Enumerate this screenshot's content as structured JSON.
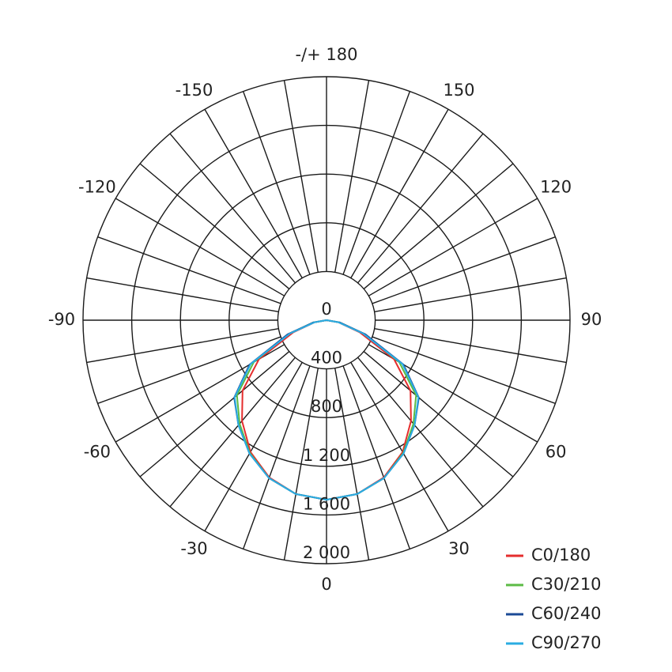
{
  "chart_data": {
    "type": "polar",
    "x": [
      -90,
      -80,
      -70,
      -60,
      -50,
      -40,
      -30,
      -20,
      -10,
      0,
      10,
      20,
      30,
      40,
      50,
      60,
      70,
      80,
      90
    ],
    "series": [
      {
        "name": "C0/180",
        "color": "#e52d2d",
        "values": [
          0,
          100,
          290,
          640,
          900,
          1080,
          1250,
          1375,
          1450,
          1475,
          1450,
          1375,
          1250,
          1080,
          900,
          640,
          290,
          100,
          0
        ]
      },
      {
        "name": "C30/210",
        "color": "#5cbb46",
        "values": [
          0,
          110,
          330,
          690,
          960,
          1110,
          1260,
          1380,
          1450,
          1475,
          1450,
          1380,
          1260,
          1110,
          960,
          690,
          330,
          110,
          0
        ]
      },
      {
        "name": "C60/240",
        "color": "#1b4a96",
        "values": [
          0,
          110,
          340,
          730,
          990,
          1125,
          1265,
          1380,
          1450,
          1475,
          1450,
          1380,
          1265,
          1125,
          990,
          730,
          340,
          110,
          0
        ]
      },
      {
        "name": "C90/270",
        "color": "#2aace2",
        "values": [
          0,
          100,
          320,
          720,
          985,
          1125,
          1265,
          1380,
          1450,
          1475,
          1450,
          1380,
          1265,
          1125,
          985,
          720,
          320,
          100,
          0
        ]
      }
    ],
    "rlim": [
      0,
      2000
    ],
    "rticks": [
      0,
      400,
      800,
      {
        "value": 1200,
        "label": "1 200"
      },
      {
        "value": 1600,
        "label": "1 600"
      },
      {
        "value": 2000,
        "label": "2 000"
      }
    ],
    "xticks": [
      -150,
      -120,
      -90,
      -60,
      -30,
      0,
      30,
      60,
      90,
      120,
      150,
      {
        "value": 180,
        "label": "-/+ 180"
      }
    ],
    "legend": "lower right"
  }
}
